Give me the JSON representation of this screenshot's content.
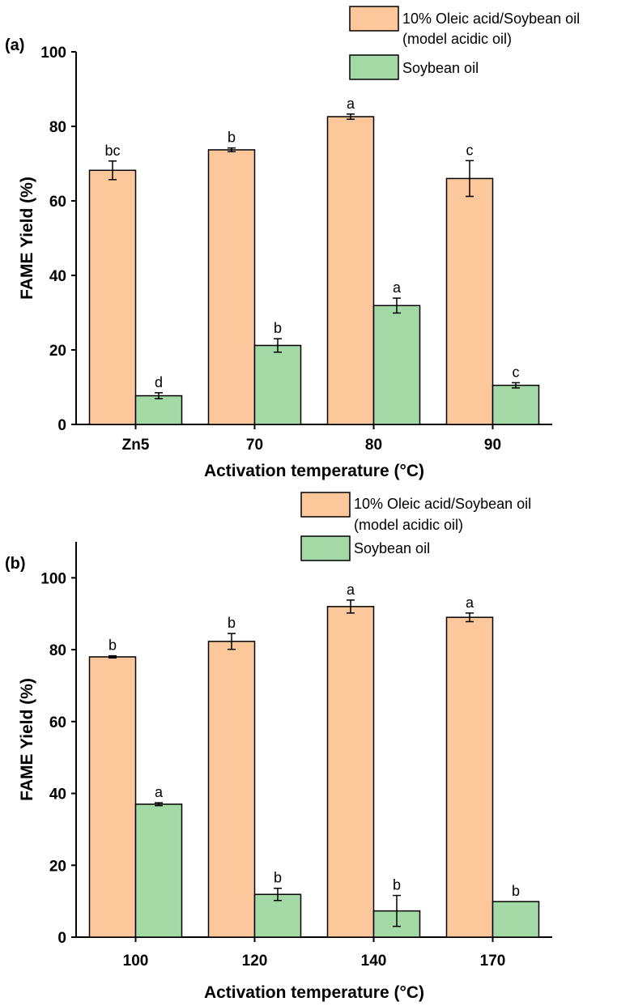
{
  "chart_data": [
    {
      "type": "bar",
      "panel_label": "(a)",
      "categories": [
        "Zn5",
        "70",
        "80",
        "90"
      ],
      "xlabel": "Activation temperature (°C)",
      "ylabel": "FAME Yield (%)",
      "ylim": [
        0,
        100
      ],
      "yticks": [
        "0",
        "20",
        "40",
        "60",
        "80",
        "100"
      ],
      "series": [
        {
          "name": "10% Oleic acid/Soybean oil",
          "name_line2": "(model acidic oil)",
          "color": "#FCC89B",
          "values": [
            68.2,
            73.7,
            82.6,
            66.0
          ],
          "errors": [
            2.5,
            0.5,
            0.7,
            4.8
          ],
          "sig_labels": [
            "bc",
            "b",
            "a",
            "c"
          ]
        },
        {
          "name": "Soybean oil",
          "color": "#A3D9A5",
          "values": [
            7.7,
            21.2,
            31.9,
            10.5
          ],
          "errors": [
            0.8,
            1.8,
            2.0,
            0.7
          ],
          "sig_labels": [
            "d",
            "b",
            "a",
            "c"
          ]
        }
      ]
    },
    {
      "type": "bar",
      "panel_label": "(b)",
      "categories": [
        "100",
        "120",
        "140",
        "170"
      ],
      "xlabel": "Activation temperature (°C)",
      "ylabel": "FAME Yield (%)",
      "ylim": [
        0,
        110
      ],
      "yticks": [
        "0",
        "20",
        "40",
        "60",
        "80",
        "100"
      ],
      "series": [
        {
          "name": "10% Oleic acid/Soybean oil",
          "name_line2": "(model acidic oil)",
          "color": "#FCC89B",
          "values": [
            78.0,
            82.3,
            92.0,
            89.0
          ],
          "errors": [
            0.3,
            2.2,
            1.8,
            1.2
          ],
          "sig_labels": [
            "b",
            "b",
            "a",
            "a"
          ]
        },
        {
          "name": "Soybean oil",
          "color": "#A3D9A5",
          "values": [
            37.0,
            11.9,
            7.3,
            9.9
          ],
          "errors": [
            0.4,
            1.7,
            4.3,
            0.0
          ],
          "sig_labels": [
            "a",
            "b",
            "b",
            "b"
          ]
        }
      ]
    }
  ]
}
